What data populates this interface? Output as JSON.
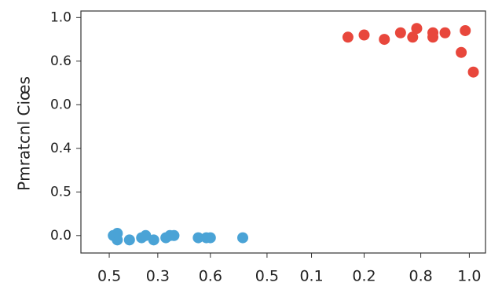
{
  "chart_data": {
    "type": "scatter",
    "y_label": "Pmratcnl Ciœs",
    "xlim": [
      0,
      1
    ],
    "ylim": [
      -0.08,
      1.03
    ],
    "xticks": [
      {
        "value": 0.07,
        "label": "0.5"
      },
      {
        "value": 0.19,
        "label": "0.3"
      },
      {
        "value": 0.32,
        "label": "0.6"
      },
      {
        "value": 0.46,
        "label": "0.5"
      },
      {
        "value": 0.57,
        "label": "0.1"
      },
      {
        "value": 0.7,
        "label": "0.2"
      },
      {
        "value": 0.84,
        "label": "0.8"
      },
      {
        "value": 0.96,
        "label": "1.0"
      }
    ],
    "yticks": [
      {
        "value": 0,
        "label": "0.0"
      },
      {
        "value": 0.2,
        "label": "0.5"
      },
      0.4,
      {
        "value": 0.6,
        "label": "0.0"
      },
      {
        "value": 0.8,
        "label": "0.6"
      },
      {
        "value": 1,
        "label": "1.0"
      }
    ],
    "series": [
      {
        "color": "#e8473c",
        "x": [
          0.66,
          0.7,
          0.75,
          0.79,
          0.82,
          0.83,
          0.87,
          0.87,
          0.9,
          0.94,
          0.95,
          0.97
        ],
        "values": [
          0.91,
          0.92,
          0.9,
          0.93,
          0.91,
          0.95,
          0.93,
          0.91,
          0.93,
          0.84,
          0.94,
          0.75
        ]
      },
      {
        "color": "#4aa3d6",
        "x": [
          0.08,
          0.09,
          0.09,
          0.12,
          0.15,
          0.16,
          0.18,
          0.21,
          0.22,
          0.23,
          0.29,
          0.31,
          0.32,
          0.4
        ],
        "values": [
          0,
          -0.02,
          0.01,
          -0.02,
          -0.01,
          0,
          -0.02,
          -0.01,
          0,
          0,
          -0.01,
          -0.01,
          -0.01,
          -0.01
        ]
      }
    ]
  }
}
